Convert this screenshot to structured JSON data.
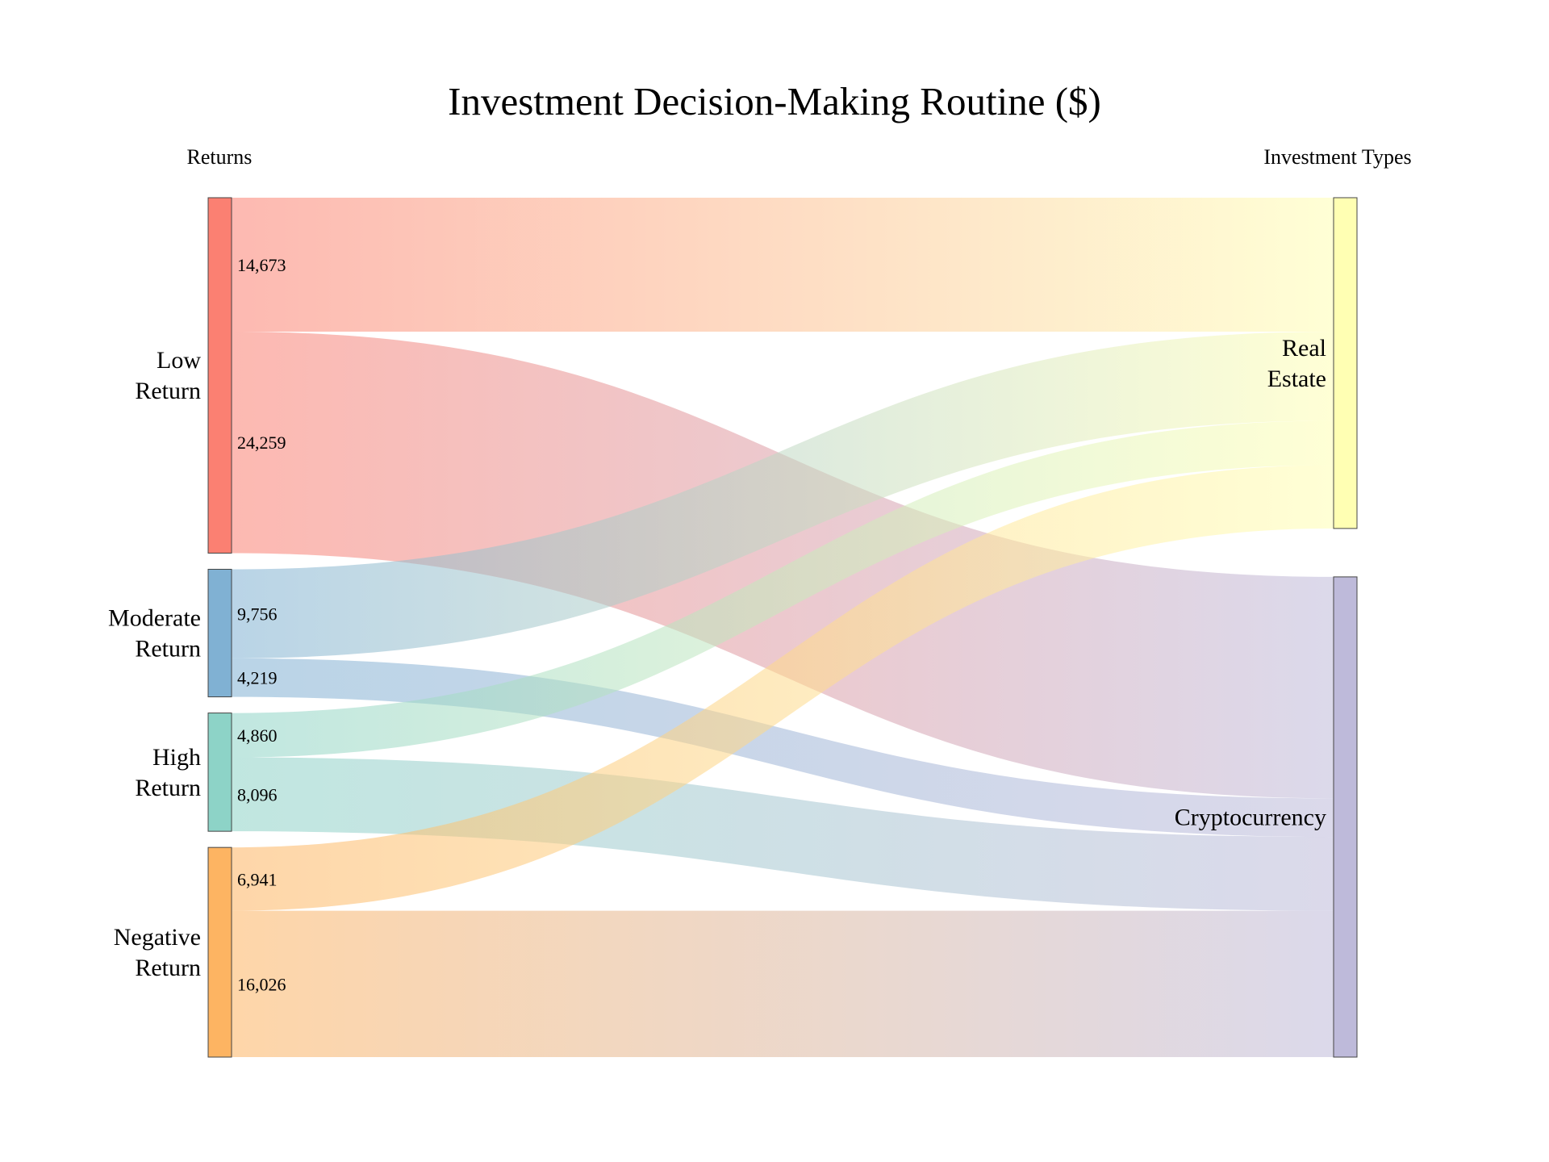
{
  "chart_data": {
    "type": "sankey",
    "title": "Investment Decision-Making Routine ($)",
    "source_column_label": "Returns",
    "target_column_label": "Investment Types",
    "sources": [
      {
        "name": "Low Return",
        "lines": [
          "Low",
          "Return"
        ],
        "color": "#fb8072"
      },
      {
        "name": "Moderate Return",
        "lines": [
          "Moderate",
          "Return"
        ],
        "color": "#80b1d3"
      },
      {
        "name": "High Return",
        "lines": [
          "High",
          "Return"
        ],
        "color": "#8dd3c7"
      },
      {
        "name": "Negative Return",
        "lines": [
          "Negative",
          "Return"
        ],
        "color": "#fdb462"
      }
    ],
    "targets": [
      {
        "name": "Real Estate",
        "lines": [
          "Real",
          "Estate"
        ],
        "color": "#ffffb3"
      },
      {
        "name": "Cryptocurrency",
        "lines": [
          "Cryptocurrency"
        ],
        "color": "#bebada"
      }
    ],
    "links": [
      {
        "source": "Low Return",
        "target": "Real Estate",
        "value": 14673,
        "label": "14,673"
      },
      {
        "source": "Low Return",
        "target": "Cryptocurrency",
        "value": 24259,
        "label": "24,259"
      },
      {
        "source": "Moderate Return",
        "target": "Real Estate",
        "value": 9756,
        "label": "9,756"
      },
      {
        "source": "Moderate Return",
        "target": "Cryptocurrency",
        "value": 4219,
        "label": "4,219"
      },
      {
        "source": "High Return",
        "target": "Real Estate",
        "value": 4860,
        "label": "4,860"
      },
      {
        "source": "High Return",
        "target": "Cryptocurrency",
        "value": 8096,
        "label": "8,096"
      },
      {
        "source": "Negative Return",
        "target": "Real Estate",
        "value": 6941,
        "label": "6,941"
      },
      {
        "source": "Negative Return",
        "target": "Cryptocurrency",
        "value": 16026,
        "label": "16,026"
      }
    ]
  }
}
